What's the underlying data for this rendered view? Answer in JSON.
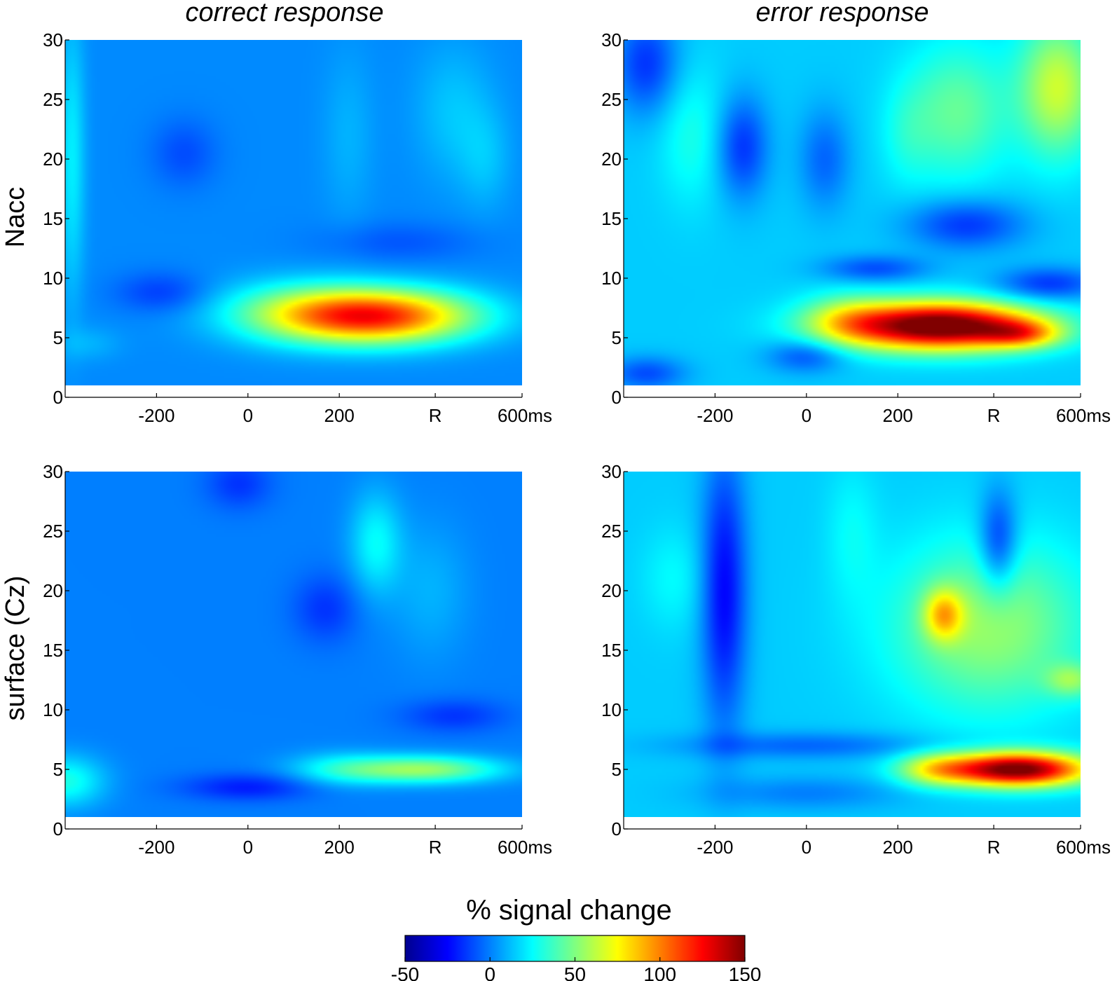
{
  "colormap": [
    "#00008f",
    "#0000ff",
    "#00ffff",
    "#ffff00",
    "#ff0000",
    "#800000"
  ],
  "column_titles": [
    "correct response",
    "error response"
  ],
  "row_labels": [
    "Nacc",
    "surface (Cz)"
  ],
  "chart_data": [
    {
      "type": "heatmap",
      "title": "correct response",
      "ylabel": "Nacc",
      "xlim": [
        -400,
        600
      ],
      "ylim": [
        0,
        30
      ],
      "x_ticks": [
        -200,
        0,
        200,
        410,
        600
      ],
      "x_tick_labels": [
        "-200",
        "0",
        "200",
        "R",
        "600ms"
      ],
      "y_ticks": [
        0,
        5,
        10,
        15,
        20,
        25,
        30
      ],
      "y_tick_labels": [
        "0",
        "5",
        "10",
        "15",
        "20",
        "25",
        "30"
      ],
      "data_y_range": [
        1,
        30
      ],
      "value_range": [
        -50,
        150
      ],
      "baseline": 2,
      "features": [
        {
          "t": 280,
          "f": 6.8,
          "st": 150,
          "sf": 1.6,
          "v": 115
        },
        {
          "t": 100,
          "f": 7.2,
          "st": 120,
          "sf": 1.8,
          "v": 30
        },
        {
          "t": -190,
          "f": 8.8,
          "st": 70,
          "sf": 1.2,
          "v": -15
        },
        {
          "t": 330,
          "f": 13.0,
          "st": 120,
          "sf": 1.2,
          "v": -10
        },
        {
          "t": 450,
          "f": 24.0,
          "st": 60,
          "sf": 4.0,
          "v": 12
        },
        {
          "t": 520,
          "f": 20.0,
          "st": 40,
          "sf": 3.0,
          "v": 10
        },
        {
          "t": 220,
          "f": 22.0,
          "st": 40,
          "sf": 5.0,
          "v": 8
        },
        {
          "t": -385,
          "f": 20.0,
          "st": 20,
          "sf": 8.0,
          "v": 20
        },
        {
          "t": -140,
          "f": 20.5,
          "st": 50,
          "sf": 2.0,
          "v": -12
        },
        {
          "t": -350,
          "f": 4.5,
          "st": 50,
          "sf": 1.0,
          "v": 8
        }
      ]
    },
    {
      "type": "heatmap",
      "title": "error response",
      "ylabel": "",
      "xlim": [
        -400,
        600
      ],
      "ylim": [
        0,
        30
      ],
      "x_ticks": [
        -200,
        0,
        200,
        410,
        600
      ],
      "x_tick_labels": [
        "-200",
        "0",
        "200",
        "R",
        "600ms"
      ],
      "y_ticks": [
        0,
        5,
        10,
        15,
        20,
        25,
        30
      ],
      "y_tick_labels": [
        "0",
        "5",
        "10",
        "15",
        "20",
        "25",
        "30"
      ],
      "data_y_range": [
        1,
        30
      ],
      "value_range": [
        -50,
        150
      ],
      "baseline": 15,
      "features": [
        {
          "t": 290,
          "f": 6.0,
          "st": 150,
          "sf": 1.4,
          "v": 150
        },
        {
          "t": 470,
          "f": 5.3,
          "st": 60,
          "sf": 0.8,
          "v": 50
        },
        {
          "t": 90,
          "f": 6.5,
          "st": 70,
          "sf": 1.5,
          "v": 30
        },
        {
          "t": 550,
          "f": 26.0,
          "st": 60,
          "sf": 4.0,
          "v": 50
        },
        {
          "t": 330,
          "f": 24.0,
          "st": 80,
          "sf": 4.0,
          "v": 30
        },
        {
          "t": -350,
          "f": 28.0,
          "st": 50,
          "sf": 3.0,
          "v": -30
        },
        {
          "t": -140,
          "f": 21.0,
          "st": 40,
          "sf": 3.0,
          "v": -30
        },
        {
          "t": 40,
          "f": 20.0,
          "st": 40,
          "sf": 3.0,
          "v": -20
        },
        {
          "t": 350,
          "f": 14.5,
          "st": 90,
          "sf": 1.5,
          "v": -30
        },
        {
          "t": 150,
          "f": 10.8,
          "st": 80,
          "sf": 0.8,
          "v": -25
        },
        {
          "t": 530,
          "f": 9.5,
          "st": 80,
          "sf": 1.0,
          "v": -30
        },
        {
          "t": -350,
          "f": 2.0,
          "st": 60,
          "sf": 1.0,
          "v": -25
        },
        {
          "t": 0,
          "f": 3.5,
          "st": 60,
          "sf": 1.0,
          "v": -25
        },
        {
          "t": -250,
          "f": 22.0,
          "st": 50,
          "sf": 4.0,
          "v": 15
        },
        {
          "t": 220,
          "f": 22.0,
          "st": 40,
          "sf": 3.0,
          "v": 10
        }
      ]
    },
    {
      "type": "heatmap",
      "title": "",
      "ylabel": "surface (Cz)",
      "xlim": [
        -400,
        600
      ],
      "ylim": [
        0,
        30
      ],
      "x_ticks": [
        -200,
        0,
        200,
        410,
        600
      ],
      "x_tick_labels": [
        "-200",
        "0",
        "200",
        "R",
        "600ms"
      ],
      "y_ticks": [
        0,
        5,
        10,
        15,
        20,
        25,
        30
      ],
      "y_tick_labels": [
        "0",
        "5",
        "10",
        "15",
        "20",
        "25",
        "30"
      ],
      "data_y_range": [
        1,
        30
      ],
      "value_range": [
        -50,
        150
      ],
      "baseline": 0,
      "features": [
        {
          "t": 380,
          "f": 5.0,
          "st": 120,
          "sf": 0.8,
          "v": 55
        },
        {
          "t": 200,
          "f": 5.0,
          "st": 80,
          "sf": 1.0,
          "v": 20
        },
        {
          "t": -400,
          "f": 4.0,
          "st": 60,
          "sf": 1.5,
          "v": 30
        },
        {
          "t": 0,
          "f": 3.5,
          "st": 100,
          "sf": 0.8,
          "v": -20
        },
        {
          "t": 450,
          "f": 9.5,
          "st": 80,
          "sf": 1.0,
          "v": -15
        },
        {
          "t": 280,
          "f": 24.0,
          "st": 40,
          "sf": 3.0,
          "v": 25
        },
        {
          "t": 170,
          "f": 18.5,
          "st": 50,
          "sf": 2.0,
          "v": -15
        },
        {
          "t": -20,
          "f": 29.0,
          "st": 50,
          "sf": 1.5,
          "v": -15
        },
        {
          "t": 400,
          "f": 20.0,
          "st": 60,
          "sf": 4.0,
          "v": 10
        }
      ]
    },
    {
      "type": "heatmap",
      "title": "",
      "ylabel": "",
      "xlim": [
        -400,
        600
      ],
      "ylim": [
        0,
        30
      ],
      "x_ticks": [
        -200,
        0,
        200,
        410,
        600
      ],
      "x_tick_labels": [
        "-200",
        "0",
        "200",
        "R",
        "600ms"
      ],
      "y_ticks": [
        0,
        5,
        10,
        15,
        20,
        25,
        30
      ],
      "y_tick_labels": [
        "0",
        "5",
        "10",
        "15",
        "20",
        "25",
        "30"
      ],
      "data_y_range": [
        1,
        30
      ],
      "value_range": [
        -50,
        150
      ],
      "baseline": 15,
      "features": [
        {
          "t": 460,
          "f": 5.0,
          "st": 110,
          "sf": 1.0,
          "v": 140
        },
        {
          "t": 280,
          "f": 5.0,
          "st": 60,
          "sf": 1.0,
          "v": 40
        },
        {
          "t": 300,
          "f": 18.0,
          "st": 30,
          "sf": 1.5,
          "v": 50
        },
        {
          "t": 400,
          "f": 17.0,
          "st": 150,
          "sf": 5.0,
          "v": 40
        },
        {
          "t": 580,
          "f": 12.5,
          "st": 40,
          "sf": 1.0,
          "v": 30
        },
        {
          "t": -180,
          "f": 20.0,
          "st": 35,
          "sf": 8.0,
          "v": -40
        },
        {
          "t": 420,
          "f": 24.0,
          "st": 30,
          "sf": 3.0,
          "v": -35
        },
        {
          "t": 0,
          "f": 7.0,
          "st": 200,
          "sf": 0.8,
          "v": -20
        },
        {
          "t": 0,
          "f": 3.0,
          "st": 150,
          "sf": 1.0,
          "v": -15
        },
        {
          "t": -290,
          "f": 21.0,
          "st": 50,
          "sf": 3.0,
          "v": 10
        },
        {
          "t": 100,
          "f": 25.0,
          "st": 40,
          "sf": 4.0,
          "v": 10
        }
      ]
    }
  ],
  "colorbar": {
    "title": "% signal change",
    "min": -50,
    "max": 150,
    "tick_values": [
      -50,
      0,
      50,
      100,
      150
    ],
    "tick_labels": [
      "-50",
      "0",
      "50",
      "100",
      "150"
    ]
  }
}
